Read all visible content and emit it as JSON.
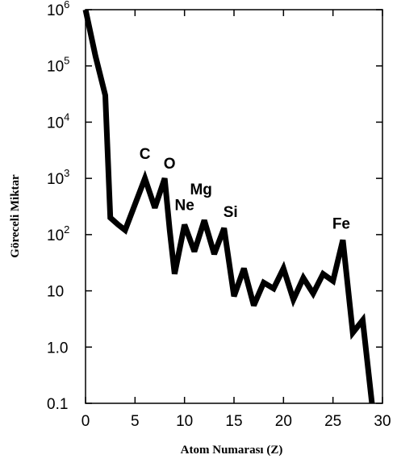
{
  "chart_data": {
    "type": "line",
    "xlabel": "Atom Numarası (Z)",
    "ylabel": "Göreceli Miktar",
    "x_scale": "linear",
    "y_scale": "log",
    "xlim": [
      0,
      30
    ],
    "ylim": [
      0.1,
      1000000
    ],
    "grid": false,
    "line_color": "#000000",
    "x_ticks": [
      {
        "value": 0,
        "label": "0"
      },
      {
        "value": 5,
        "label": "5"
      },
      {
        "value": 10,
        "label": "10"
      },
      {
        "value": 15,
        "label": "15"
      },
      {
        "value": 20,
        "label": "20"
      },
      {
        "value": 25,
        "label": "25"
      },
      {
        "value": 30,
        "label": "30"
      }
    ],
    "y_ticks": [
      {
        "value": 1000000,
        "base": "10",
        "exp": "6"
      },
      {
        "value": 100000,
        "base": "10",
        "exp": "5"
      },
      {
        "value": 10000,
        "base": "10",
        "exp": "4"
      },
      {
        "value": 1000,
        "base": "10",
        "exp": "3"
      },
      {
        "value": 100,
        "base": "10",
        "exp": "2"
      },
      {
        "value": 10,
        "base": "10",
        "exp": ""
      },
      {
        "value": 1,
        "base": "1.0",
        "exp": ""
      },
      {
        "value": 0.1,
        "base": "0.1",
        "exp": ""
      }
    ],
    "series": [
      {
        "x": [
          0,
          1,
          2,
          2.5,
          3.3,
          4,
          6,
          7,
          8,
          8.5,
          9,
          10,
          11,
          12,
          13,
          14,
          15,
          16,
          17,
          18,
          19,
          20,
          21,
          22,
          23,
          24,
          25,
          26,
          27,
          28,
          29
        ],
        "y": [
          1000000,
          150000,
          30000,
          200,
          150,
          120,
          1000,
          300,
          1000,
          120,
          20,
          150,
          50,
          180,
          45,
          130,
          8,
          25,
          5.5,
          14,
          11,
          25,
          7,
          17,
          9,
          20,
          15,
          80,
          1.8,
          3,
          0.08
        ]
      }
    ],
    "annotations": [
      {
        "text": "C",
        "x": 6,
        "y": 1000
      },
      {
        "text": "O",
        "x": 8,
        "y": 1000
      },
      {
        "text": "Ne",
        "x": 10,
        "y": 150
      },
      {
        "text": "Mg",
        "x": 12,
        "y": 180
      },
      {
        "text": "Si",
        "x": 14,
        "y": 130
      },
      {
        "text": "Fe",
        "x": 26,
        "y": 80
      }
    ]
  }
}
